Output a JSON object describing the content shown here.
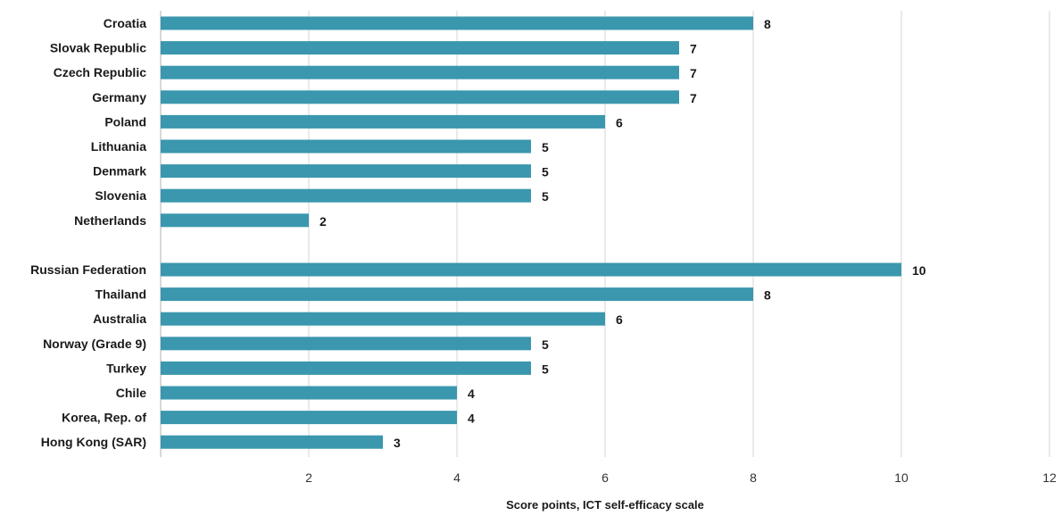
{
  "chart_data": {
    "type": "bar",
    "orientation": "horizontal",
    "title": "",
    "xlabel": "Score points, ICT self-efficacy scale",
    "ylabel": "",
    "xlim": [
      0,
      12
    ],
    "xticks": [
      2,
      4,
      6,
      8,
      10,
      12
    ],
    "grid": true,
    "legend": "none",
    "bar_color": "#3a97ae",
    "groups": [
      {
        "categories": [
          "Croatia",
          "Slovak Republic",
          "Czech Republic",
          "Germany",
          "Poland",
          "Lithuania",
          "Denmark",
          "Slovenia",
          "Netherlands"
        ],
        "values": [
          8,
          7,
          7,
          7,
          6,
          5,
          5,
          5,
          2
        ]
      },
      {
        "categories": [
          "Russian Federation",
          "Thailand",
          "Australia",
          "Norway (Grade 9)",
          "Turkey",
          "Chile",
          "Korea, Rep. of",
          "Hong Kong (SAR)"
        ],
        "values": [
          10,
          8,
          6,
          5,
          5,
          4,
          4,
          3
        ]
      }
    ]
  }
}
